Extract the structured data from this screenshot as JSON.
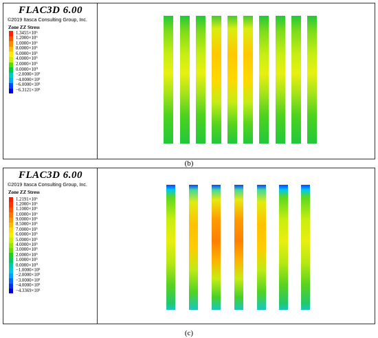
{
  "panels": [
    {
      "id": "b",
      "app_title": "FLAC3D 6.00",
      "copyright": "©2019 Itasca Consulting Group, Inc.",
      "stress_label": "Zone ZZ Stress",
      "legend": [
        {
          "value": "1.3455×10⁶",
          "color": "#ff2200"
        },
        {
          "value": "1.2000×10⁶",
          "color": "#ff5500"
        },
        {
          "value": "1.0000×10⁶",
          "color": "#ff8c00"
        },
        {
          "value": "8.0000×10⁵",
          "color": "#ffbb00"
        },
        {
          "value": "6.0000×10⁵",
          "color": "#ffee00"
        },
        {
          "value": "4.0000×10⁵",
          "color": "#c8f000"
        },
        {
          "value": "2.0000×10⁵",
          "color": "#55dd00"
        },
        {
          "value": "0.0000×10⁰",
          "color": "#00cc44"
        },
        {
          "value": "−2.0000×10⁵",
          "color": "#00ccbb"
        },
        {
          "value": "−4.0000×10⁵",
          "color": "#00a8ff"
        },
        {
          "value": "−6.0000×10⁵",
          "color": "#0044ff"
        },
        {
          "value": "−6.3121×10⁵",
          "color": "#0000dd"
        }
      ],
      "caption": "(b)"
    },
    {
      "id": "c",
      "app_title": "FLAC3D 6.00",
      "copyright": "©2019 Itasca Consulting Group, Inc.",
      "stress_label": "Zone ZZ Stress",
      "legend": [
        {
          "value": "1.2191×10⁶",
          "color": "#ff1a00"
        },
        {
          "value": "1.2000×10⁶",
          "color": "#ff3300"
        },
        {
          "value": "1.1000×10⁶",
          "color": "#ff5500"
        },
        {
          "value": "1.0000×10⁶",
          "color": "#ff7700"
        },
        {
          "value": "9.0000×10⁵",
          "color": "#ff9900"
        },
        {
          "value": "8.5000×10⁵",
          "color": "#ffbb00"
        },
        {
          "value": "7.0000×10⁵",
          "color": "#ffdd00"
        },
        {
          "value": "6.0000×10⁵",
          "color": "#eef200"
        },
        {
          "value": "5.0000×10⁵",
          "color": "#c8f000"
        },
        {
          "value": "4.0000×10⁵",
          "color": "#99e600"
        },
        {
          "value": "3.0000×10⁵",
          "color": "#66dd00"
        },
        {
          "value": "2.0000×10⁵",
          "color": "#22cc22"
        },
        {
          "value": "1.0000×10⁵",
          "color": "#00cc66"
        },
        {
          "value": "0.0000×10⁰",
          "color": "#00ccaa"
        },
        {
          "value": "−1.0000×10⁵",
          "color": "#00c8dd"
        },
        {
          "value": "−2.0000×10⁵",
          "color": "#00a0ff"
        },
        {
          "value": "−3.0000×10⁵",
          "color": "#0066ff"
        },
        {
          "value": "−4.0000×10⁵",
          "color": "#0033ee"
        },
        {
          "value": "−4.3369×10⁵",
          "color": "#0000cc"
        }
      ],
      "caption": "(c)"
    }
  ]
}
